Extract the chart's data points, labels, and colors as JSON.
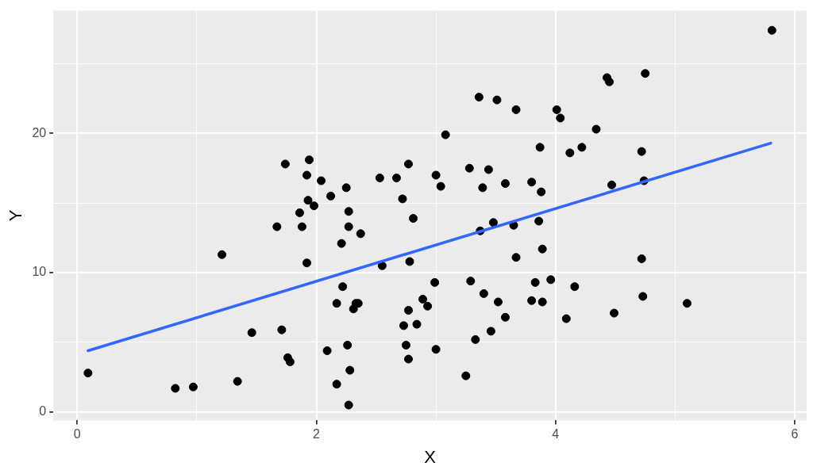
{
  "chart_data": {
    "type": "scatter",
    "xlabel": "X",
    "ylabel": "Y",
    "xlim": [
      -0.2,
      6.1
    ],
    "ylim": [
      -0.6,
      28.8
    ],
    "xticks": [
      0,
      {
        "value": 1,
        "label": null
      },
      2,
      {
        "value": 3,
        "label": null
      },
      4,
      {
        "value": 5,
        "label": null
      },
      6
    ],
    "yticks": [
      0,
      {
        "value": 5,
        "label": null
      },
      10,
      {
        "value": 15,
        "label": null
      },
      20,
      {
        "value": 25,
        "label": null
      }
    ],
    "grid": true,
    "legend": false,
    "series": [
      {
        "type": "scatter",
        "marker": "circle",
        "color": "#000000",
        "x": [
          0.09,
          0.82,
          0.97,
          1.21,
          1.34,
          1.46,
          1.67,
          1.71,
          1.74,
          1.76,
          1.78,
          1.86,
          1.88,
          1.92,
          1.93,
          1.98,
          1.92,
          1.94,
          2.04,
          2.09,
          2.12,
          2.17,
          2.17,
          2.21,
          2.22,
          2.25,
          2.26,
          2.27,
          2.27,
          2.28,
          2.27,
          2.31,
          2.33,
          2.35,
          2.37,
          2.55,
          2.53,
          2.67,
          2.72,
          2.73,
          2.75,
          2.77,
          2.77,
          2.77,
          2.78,
          2.81,
          2.84,
          2.89,
          2.93,
          2.99,
          3.0,
          3.0,
          3.04,
          3.08,
          3.25,
          3.28,
          3.29,
          3.33,
          3.36,
          3.37,
          3.39,
          3.4,
          3.44,
          3.46,
          3.48,
          3.51,
          3.52,
          3.58,
          3.58,
          3.65,
          3.67,
          3.67,
          3.8,
          3.8,
          3.83,
          3.86,
          3.87,
          3.88,
          3.89,
          3.89,
          3.96,
          4.01,
          4.04,
          4.09,
          4.12,
          4.16,
          4.22,
          4.34,
          4.43,
          4.45,
          4.47,
          4.49,
          4.72,
          4.72,
          4.73,
          4.74,
          4.75,
          5.1,
          5.81
        ],
        "values": [
          2.8,
          1.7,
          1.8,
          11.3,
          2.2,
          5.7,
          13.3,
          5.9,
          17.8,
          3.9,
          3.6,
          14.3,
          13.3,
          17.0,
          15.2,
          14.8,
          10.7,
          18.1,
          16.6,
          4.4,
          15.5,
          2.0,
          7.8,
          12.1,
          9.0,
          16.1,
          4.8,
          14.4,
          13.3,
          3.0,
          0.5,
          7.4,
          7.8,
          7.8,
          12.8,
          10.5,
          16.8,
          16.8,
          15.3,
          6.2,
          4.8,
          17.8,
          7.3,
          3.8,
          10.8,
          13.9,
          6.3,
          8.1,
          7.6,
          9.3,
          17.0,
          4.5,
          16.2,
          19.9,
          2.6,
          17.5,
          9.4,
          5.2,
          22.6,
          13.0,
          16.1,
          8.5,
          17.4,
          5.8,
          13.6,
          22.4,
          7.9,
          6.8,
          16.4,
          13.4,
          21.7,
          11.1,
          16.5,
          8.0,
          9.3,
          13.7,
          19.0,
          15.8,
          7.9,
          11.7,
          9.5,
          21.7,
          21.1,
          6.7,
          18.6,
          9.0,
          19.0,
          20.3,
          24.0,
          23.7,
          16.3,
          7.1,
          11.0,
          18.7,
          8.3,
          16.6,
          24.3,
          7.8,
          27.4
        ]
      },
      {
        "type": "line",
        "marker": "none",
        "color": "#3366ff",
        "x": [
          0.09,
          5.8
        ],
        "values": [
          4.4,
          19.3
        ]
      }
    ]
  }
}
